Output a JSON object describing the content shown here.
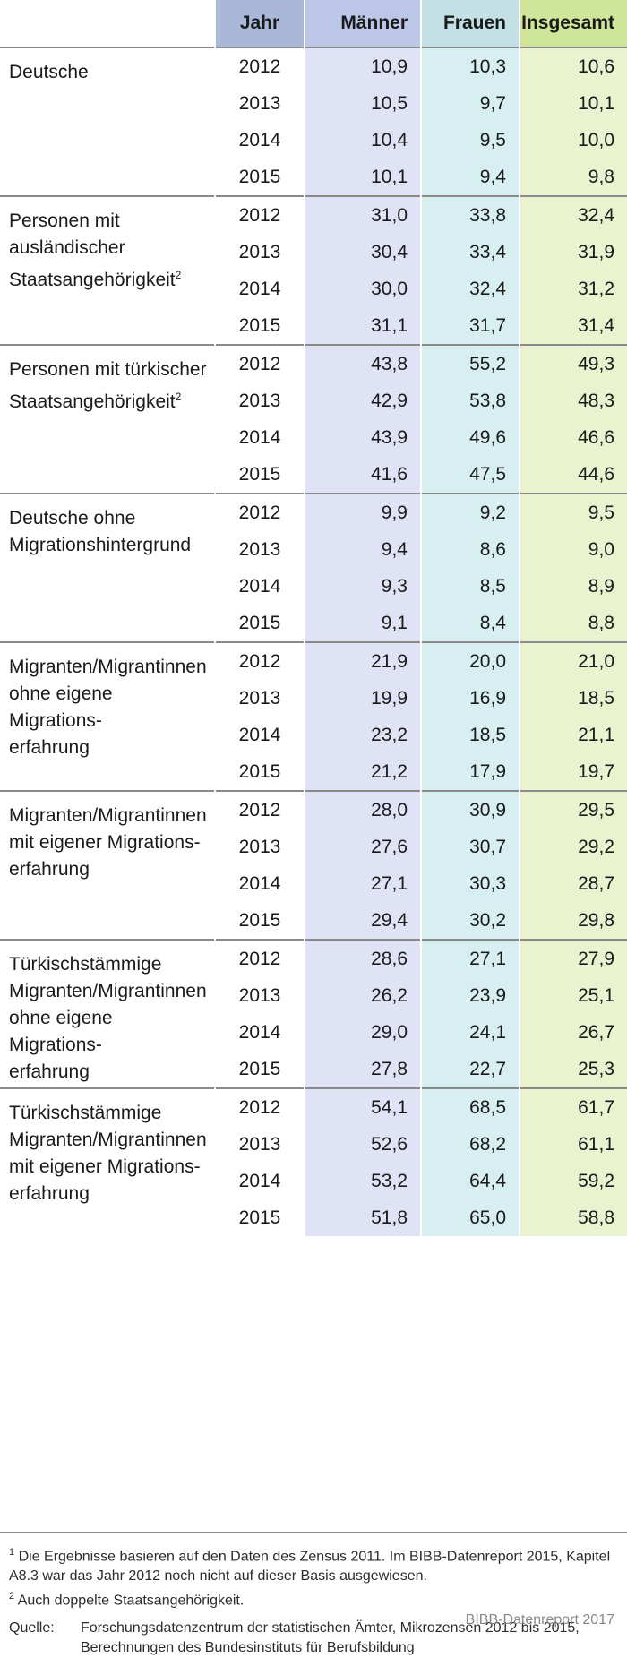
{
  "headers": {
    "group": "",
    "year": "Jahr",
    "men": "Männer",
    "women": "Frauen",
    "total": "Insgesamt"
  },
  "groups": [
    {
      "label_lines": [
        "Deutsche"
      ],
      "sup": "",
      "rows": [
        {
          "year": "2012",
          "men": "10,9",
          "women": "10,3",
          "total": "10,6"
        },
        {
          "year": "2013",
          "men": "10,5",
          "women": "9,7",
          "total": "10,1"
        },
        {
          "year": "2014",
          "men": "10,4",
          "women": "9,5",
          "total": "10,0"
        },
        {
          "year": "2015",
          "men": "10,1",
          "women": "9,4",
          "total": "9,8"
        }
      ]
    },
    {
      "label_lines": [
        "Personen mit",
        "ausländischer",
        "Staatsangehörigkeit"
      ],
      "sup": "2",
      "rows": [
        {
          "year": "2012",
          "men": "31,0",
          "women": "33,8",
          "total": "32,4"
        },
        {
          "year": "2013",
          "men": "30,4",
          "women": "33,4",
          "total": "31,9"
        },
        {
          "year": "2014",
          "men": "30,0",
          "women": "32,4",
          "total": "31,2"
        },
        {
          "year": "2015",
          "men": "31,1",
          "women": "31,7",
          "total": "31,4"
        }
      ]
    },
    {
      "label_lines": [
        "Personen mit türkischer",
        "Staatsangehörigkeit"
      ],
      "sup": "2",
      "rows": [
        {
          "year": "2012",
          "men": "43,8",
          "women": "55,2",
          "total": "49,3"
        },
        {
          "year": "2013",
          "men": "42,9",
          "women": "53,8",
          "total": "48,3"
        },
        {
          "year": "2014",
          "men": "43,9",
          "women": "49,6",
          "total": "46,6"
        },
        {
          "year": "2015",
          "men": "41,6",
          "women": "47,5",
          "total": "44,6"
        }
      ]
    },
    {
      "label_lines": [
        "Deutsche ohne",
        "Migrationshintergrund"
      ],
      "sup": "",
      "rows": [
        {
          "year": "2012",
          "men": "9,9",
          "women": "9,2",
          "total": "9,5"
        },
        {
          "year": "2013",
          "men": "9,4",
          "women": "8,6",
          "total": "9,0"
        },
        {
          "year": "2014",
          "men": "9,3",
          "women": "8,5",
          "total": "8,9"
        },
        {
          "year": "2015",
          "men": "9,1",
          "women": "8,4",
          "total": "8,8"
        }
      ]
    },
    {
      "label_lines": [
        "Migranten/Migrantinnen",
        "ohne eigene Migrations-",
        "erfahrung"
      ],
      "sup": "",
      "rows": [
        {
          "year": "2012",
          "men": "21,9",
          "women": "20,0",
          "total": "21,0"
        },
        {
          "year": "2013",
          "men": "19,9",
          "women": "16,9",
          "total": "18,5"
        },
        {
          "year": "2014",
          "men": "23,2",
          "women": "18,5",
          "total": "21,1"
        },
        {
          "year": "2015",
          "men": "21,2",
          "women": "17,9",
          "total": "19,7"
        }
      ]
    },
    {
      "label_lines": [
        "Migranten/Migrantinnen",
        "mit eigener Migrations-",
        "erfahrung"
      ],
      "sup": "",
      "rows": [
        {
          "year": "2012",
          "men": "28,0",
          "women": "30,9",
          "total": "29,5"
        },
        {
          "year": "2013",
          "men": "27,6",
          "women": "30,7",
          "total": "29,2"
        },
        {
          "year": "2014",
          "men": "27,1",
          "women": "30,3",
          "total": "28,7"
        },
        {
          "year": "2015",
          "men": "29,4",
          "women": "30,2",
          "total": "29,8"
        }
      ]
    },
    {
      "label_lines": [
        "Türkischstämmige",
        "Migranten/Migrantinnen",
        "ohne eigene Migrations-",
        "erfahrung"
      ],
      "sup": "",
      "rows": [
        {
          "year": "2012",
          "men": "28,6",
          "women": "27,1",
          "total": "27,9"
        },
        {
          "year": "2013",
          "men": "26,2",
          "women": "23,9",
          "total": "25,1"
        },
        {
          "year": "2014",
          "men": "29,0",
          "women": "24,1",
          "total": "26,7"
        },
        {
          "year": "2015",
          "men": "27,8",
          "women": "22,7",
          "total": "25,3"
        }
      ]
    },
    {
      "label_lines": [
        "Türkischstämmige",
        "Migranten/Migrantinnen",
        "mit eigener Migrations-",
        "erfahrung"
      ],
      "sup": "",
      "rows": [
        {
          "year": "2012",
          "men": "54,1",
          "women": "68,5",
          "total": "61,7"
        },
        {
          "year": "2013",
          "men": "52,6",
          "women": "68,2",
          "total": "61,1"
        },
        {
          "year": "2014",
          "men": "53,2",
          "women": "64,4",
          "total": "59,2"
        },
        {
          "year": "2015",
          "men": "51,8",
          "women": "65,0",
          "total": "58,8"
        }
      ]
    }
  ],
  "footnotes": {
    "note1_mark": "1",
    "note1_text": "Die Ergebnisse basieren auf den Daten des Zensus 2011. Im BIBB-Datenreport 2015, Kapitel A8.3 war das Jahr 2012 noch nicht auf dieser Basis ausgewiesen.",
    "note2_mark": "2",
    "note2_text": "Auch doppelte Staatsangehörigkeit.",
    "source_label": "Quelle:",
    "source_text": "Forschungsdatenzentrum der statistischen Ämter, Mikrozensen 2012 bis 2015, Berechnungen des Bundesinstituts für Berufsbildung",
    "credit": "BIBB-Datenreport 2017"
  },
  "colors": {
    "year_header": "#a9b8d9",
    "men_header": "#bcc6e6",
    "women_header": "#c3e0e4",
    "total_header": "#cfe59a",
    "men_cell": "#dfe3f5",
    "women_cell": "#d8eff1",
    "total_cell": "#e9f3d0"
  }
}
